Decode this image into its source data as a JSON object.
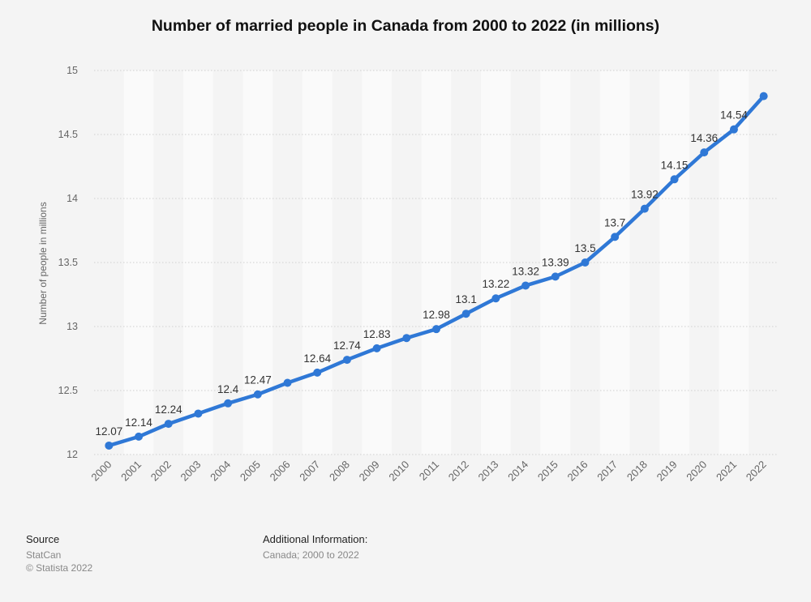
{
  "chart_data": {
    "type": "line",
    "title": "Number of married people in Canada from 2000 to 2022 (in millions)",
    "xlabel": "",
    "ylabel": "Number of people in millions",
    "ylim": [
      12,
      15
    ],
    "yticks": [
      "12",
      "12.5",
      "13",
      "13.5",
      "14",
      "14.5",
      "15"
    ],
    "categories": [
      "2000",
      "2001",
      "2002",
      "2003",
      "2004",
      "2005",
      "2006",
      "2007",
      "2008",
      "2009",
      "2010",
      "2011",
      "2012",
      "2013",
      "2014",
      "2015",
      "2016",
      "2017",
      "2018",
      "2019",
      "2020",
      "2021",
      "2022"
    ],
    "values": [
      12.07,
      12.14,
      12.24,
      12.32,
      12.4,
      12.47,
      12.56,
      12.64,
      12.74,
      12.83,
      12.91,
      12.98,
      13.1,
      13.22,
      13.32,
      13.39,
      13.5,
      13.7,
      13.92,
      14.15,
      14.36,
      14.54,
      14.8
    ],
    "data_labels": [
      "12.07",
      "12.14",
      "12.24",
      "",
      "12.4",
      "12.47",
      "",
      "12.64",
      "12.74",
      "12.83",
      "",
      "12.98",
      "13.1",
      "13.22",
      "13.32",
      "13.39",
      "13.5",
      "13.7",
      "13.92",
      "14.15",
      "14.36",
      "14.54",
      ""
    ],
    "grid": true,
    "color": "#2f78d6"
  },
  "footer": {
    "source_heading": "Source",
    "source_lines": [
      "StatCan",
      "© Statista 2022"
    ],
    "info_heading": "Additional Information:",
    "info_lines": [
      "Canada; 2000 to 2022"
    ]
  }
}
